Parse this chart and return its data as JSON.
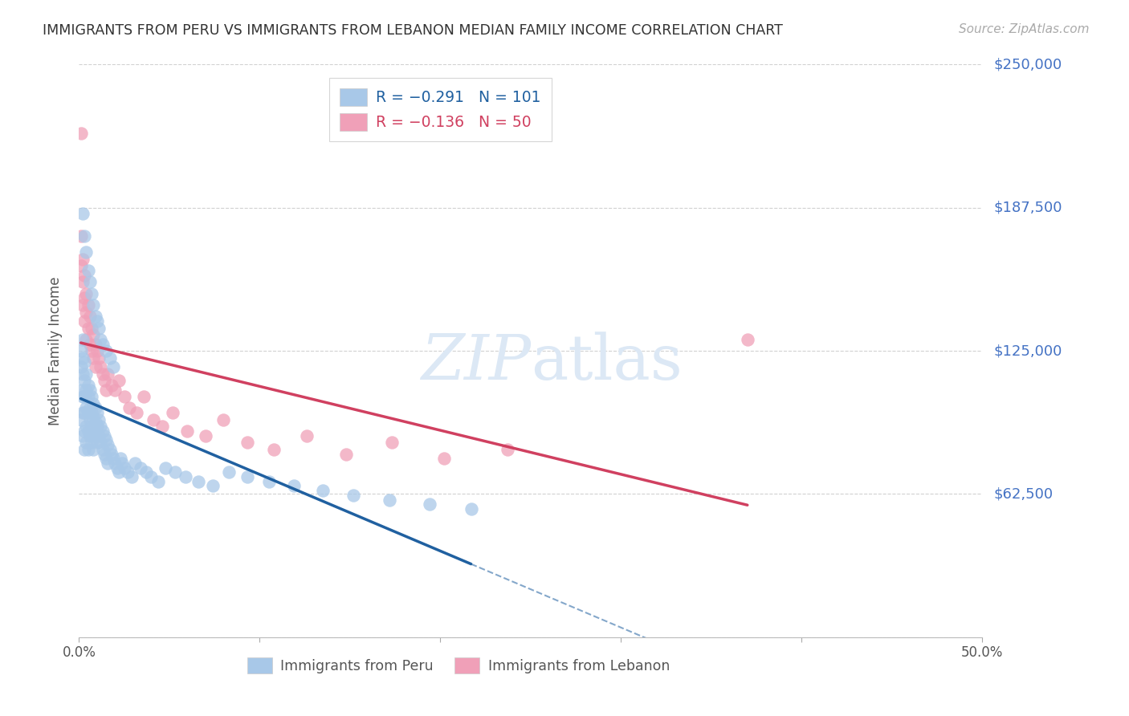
{
  "title": "IMMIGRANTS FROM PERU VS IMMIGRANTS FROM LEBANON MEDIAN FAMILY INCOME CORRELATION CHART",
  "source": "Source: ZipAtlas.com",
  "ylabel": "Median Family Income",
  "xlim": [
    0.0,
    0.5
  ],
  "ylim": [
    0,
    250000
  ],
  "yticks": [
    0,
    62500,
    125000,
    187500,
    250000
  ],
  "background_color": "#ffffff",
  "grid_color": "#cccccc",
  "title_color": "#333333",
  "right_label_color": "#4472c4",
  "peru_face_color": "#a8c8e8",
  "lebanon_face_color": "#f0a0b8",
  "peru_line_color": "#2060a0",
  "lebanon_line_color": "#d04060",
  "peru_R": -0.291,
  "peru_N": 101,
  "lebanon_R": -0.136,
  "lebanon_N": 50,
  "legend_peru_label": "Immigrants from Peru",
  "legend_lebanon_label": "Immigrants from Lebanon",
  "peru_x": [
    0.001,
    0.001,
    0.001,
    0.001,
    0.002,
    0.002,
    0.002,
    0.002,
    0.002,
    0.002,
    0.003,
    0.003,
    0.003,
    0.003,
    0.003,
    0.003,
    0.004,
    0.004,
    0.004,
    0.004,
    0.004,
    0.005,
    0.005,
    0.005,
    0.005,
    0.005,
    0.006,
    0.006,
    0.006,
    0.006,
    0.007,
    0.007,
    0.007,
    0.007,
    0.008,
    0.008,
    0.008,
    0.008,
    0.009,
    0.009,
    0.009,
    0.01,
    0.01,
    0.01,
    0.011,
    0.011,
    0.012,
    0.012,
    0.013,
    0.013,
    0.014,
    0.014,
    0.015,
    0.015,
    0.016,
    0.016,
    0.017,
    0.018,
    0.019,
    0.02,
    0.021,
    0.022,
    0.023,
    0.024,
    0.025,
    0.027,
    0.029,
    0.031,
    0.034,
    0.037,
    0.04,
    0.044,
    0.048,
    0.053,
    0.059,
    0.066,
    0.074,
    0.083,
    0.093,
    0.105,
    0.119,
    0.135,
    0.152,
    0.172,
    0.194,
    0.217,
    0.002,
    0.003,
    0.004,
    0.005,
    0.006,
    0.007,
    0.008,
    0.009,
    0.01,
    0.011,
    0.012,
    0.013,
    0.015,
    0.017,
    0.019
  ],
  "peru_y": [
    118000,
    125000,
    108000,
    95000,
    130000,
    122000,
    115000,
    105000,
    98000,
    88000,
    120000,
    112000,
    105000,
    98000,
    90000,
    82000,
    115000,
    108000,
    100000,
    92000,
    85000,
    110000,
    105000,
    98000,
    90000,
    82000,
    108000,
    100000,
    95000,
    88000,
    105000,
    98000,
    92000,
    85000,
    102000,
    96000,
    88000,
    82000,
    100000,
    94000,
    88000,
    98000,
    92000,
    85000,
    95000,
    88000,
    92000,
    85000,
    90000,
    82000,
    88000,
    80000,
    86000,
    78000,
    84000,
    76000,
    82000,
    80000,
    78000,
    76000,
    74000,
    72000,
    78000,
    76000,
    74000,
    72000,
    70000,
    76000,
    74000,
    72000,
    70000,
    68000,
    74000,
    72000,
    70000,
    68000,
    66000,
    72000,
    70000,
    68000,
    66000,
    64000,
    62000,
    60000,
    58000,
    56000,
    185000,
    175000,
    168000,
    160000,
    155000,
    150000,
    145000,
    140000,
    138000,
    135000,
    130000,
    128000,
    125000,
    122000,
    118000
  ],
  "lebanon_x": [
    0.001,
    0.001,
    0.001,
    0.002,
    0.002,
    0.002,
    0.003,
    0.003,
    0.003,
    0.004,
    0.004,
    0.004,
    0.005,
    0.005,
    0.006,
    0.006,
    0.007,
    0.007,
    0.008,
    0.008,
    0.009,
    0.009,
    0.01,
    0.011,
    0.012,
    0.013,
    0.014,
    0.015,
    0.016,
    0.018,
    0.02,
    0.022,
    0.025,
    0.028,
    0.032,
    0.036,
    0.041,
    0.046,
    0.052,
    0.06,
    0.07,
    0.08,
    0.093,
    0.108,
    0.126,
    0.148,
    0.173,
    0.202,
    0.237,
    0.37
  ],
  "lebanon_y": [
    220000,
    175000,
    162000,
    165000,
    155000,
    145000,
    158000,
    148000,
    138000,
    150000,
    142000,
    130000,
    145000,
    135000,
    140000,
    128000,
    135000,
    125000,
    132000,
    122000,
    128000,
    118000,
    125000,
    122000,
    118000,
    115000,
    112000,
    108000,
    115000,
    110000,
    108000,
    112000,
    105000,
    100000,
    98000,
    105000,
    95000,
    92000,
    98000,
    90000,
    88000,
    95000,
    85000,
    82000,
    88000,
    80000,
    85000,
    78000,
    82000,
    130000
  ]
}
